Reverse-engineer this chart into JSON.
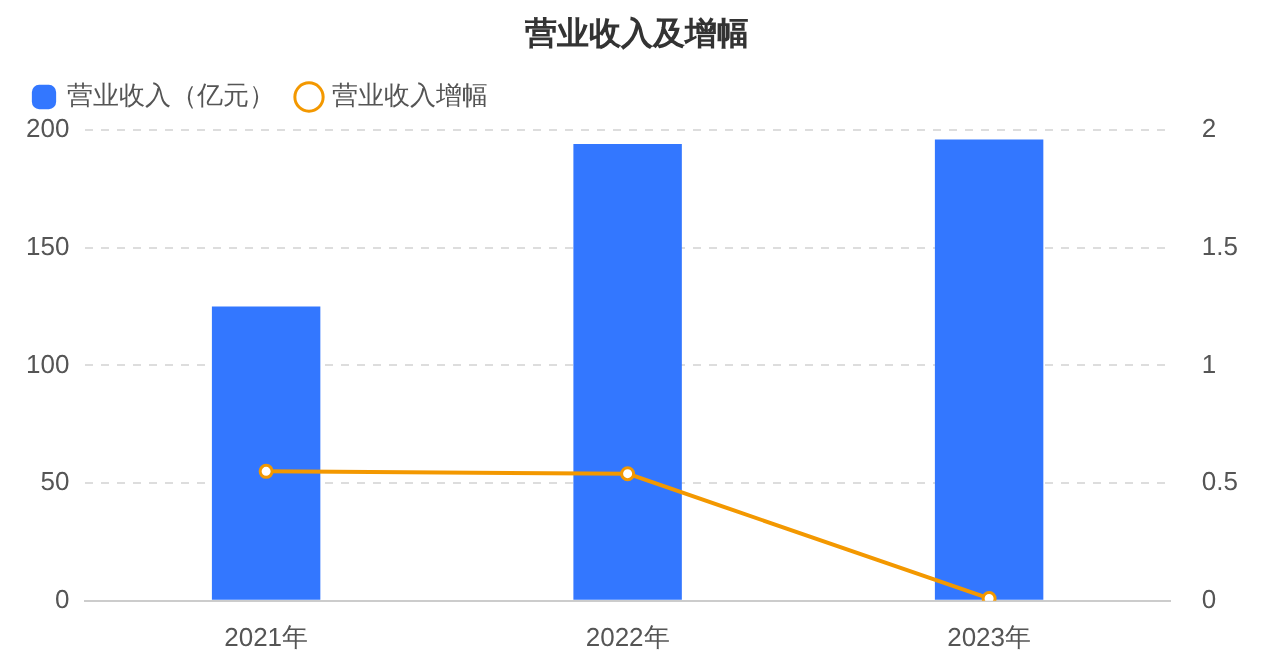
{
  "chart_data": {
    "type": "bar",
    "title": "营业收入及增幅",
    "categories": [
      "2021年",
      "2022年",
      "2023年"
    ],
    "series": [
      {
        "name": "营业收入（亿元）",
        "color": "#3377ff",
        "values": [
          125,
          194,
          196
        ]
      },
      {
        "name": "营业收入增幅",
        "type": "line",
        "axis": "y2",
        "color": "#f39800",
        "values": [
          0.55,
          0.54,
          0.01
        ]
      }
    ],
    "ylim": [
      0,
      200
    ],
    "yticks": [
      0,
      50,
      100,
      150,
      200
    ],
    "y2lim": [
      0,
      2
    ],
    "y2ticks": [
      0,
      0.5,
      1,
      1.5,
      2
    ],
    "grid": "y",
    "legend": "top left",
    "marker": "circle"
  }
}
